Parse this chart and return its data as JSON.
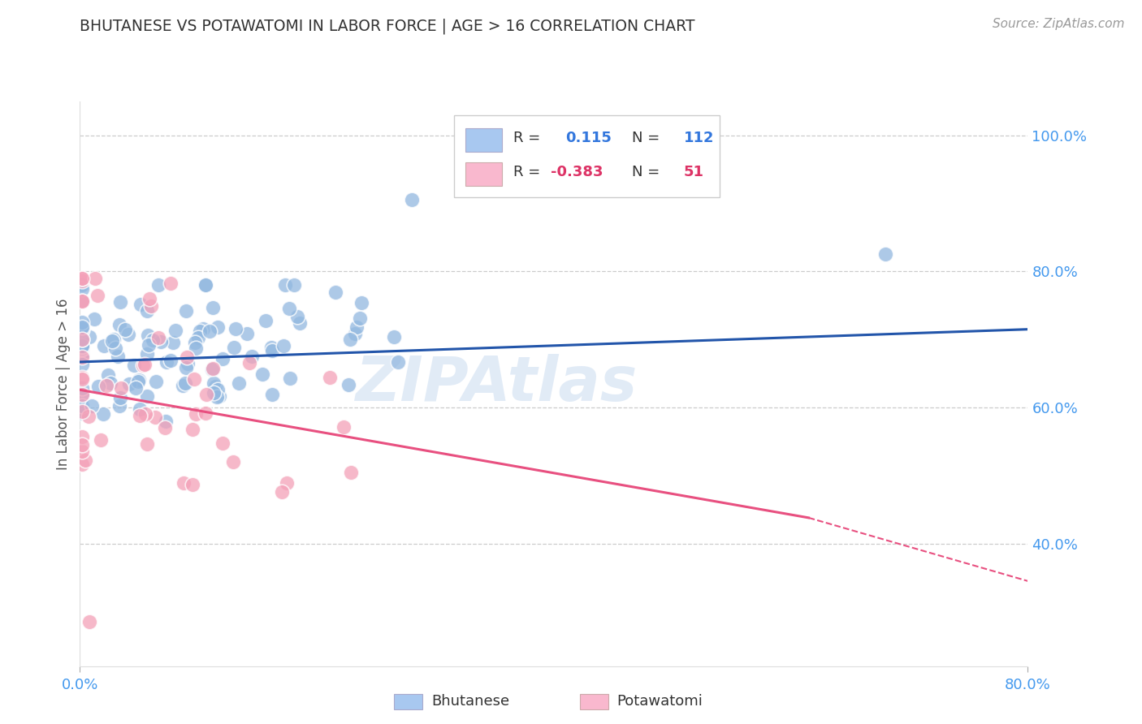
{
  "title": "BHUTANESE VS POTAWATOMI IN LABOR FORCE | AGE > 16 CORRELATION CHART",
  "source_text": "Source: ZipAtlas.com",
  "ylabel": "In Labor Force | Age > 16",
  "xlim": [
    0.0,
    0.8
  ],
  "ylim": [
    0.22,
    1.05
  ],
  "yticks": [
    0.4,
    0.6,
    0.8,
    1.0
  ],
  "yticklabels": [
    "40.0%",
    "60.0%",
    "80.0%",
    "100.0%"
  ],
  "xtick_positions": [
    0.0,
    0.8
  ],
  "xticklabels": [
    "0.0%",
    "80.0%"
  ],
  "blue_R": 0.115,
  "blue_N": 112,
  "pink_R": -0.383,
  "pink_N": 51,
  "blue_color": "#92B8E0",
  "pink_color": "#F4A0B8",
  "blue_sq_color": "#A8C8F0",
  "pink_sq_color": "#F9B8CE",
  "blue_line_color": "#2255AA",
  "pink_line_color": "#E85080",
  "grid_color": "#CCCCCC",
  "watermark": "ZIPAtlas",
  "watermark_color": "#C5D8EF",
  "title_color": "#333333",
  "axis_label_color": "#555555",
  "tick_color": "#4499EE",
  "background_color": "#FFFFFF",
  "legend_text_color": "#333333",
  "legend_value_color": "#3377DD",
  "legend_pink_value_color": "#DD3366",
  "blue_line_y0": 0.667,
  "blue_line_y1": 0.715,
  "pink_line_y0": 0.626,
  "pink_line_y1_solid": 0.438,
  "pink_line_x1_solid": 0.615,
  "pink_line_y1_dashed": 0.345,
  "pink_line_x1_dashed": 0.8
}
